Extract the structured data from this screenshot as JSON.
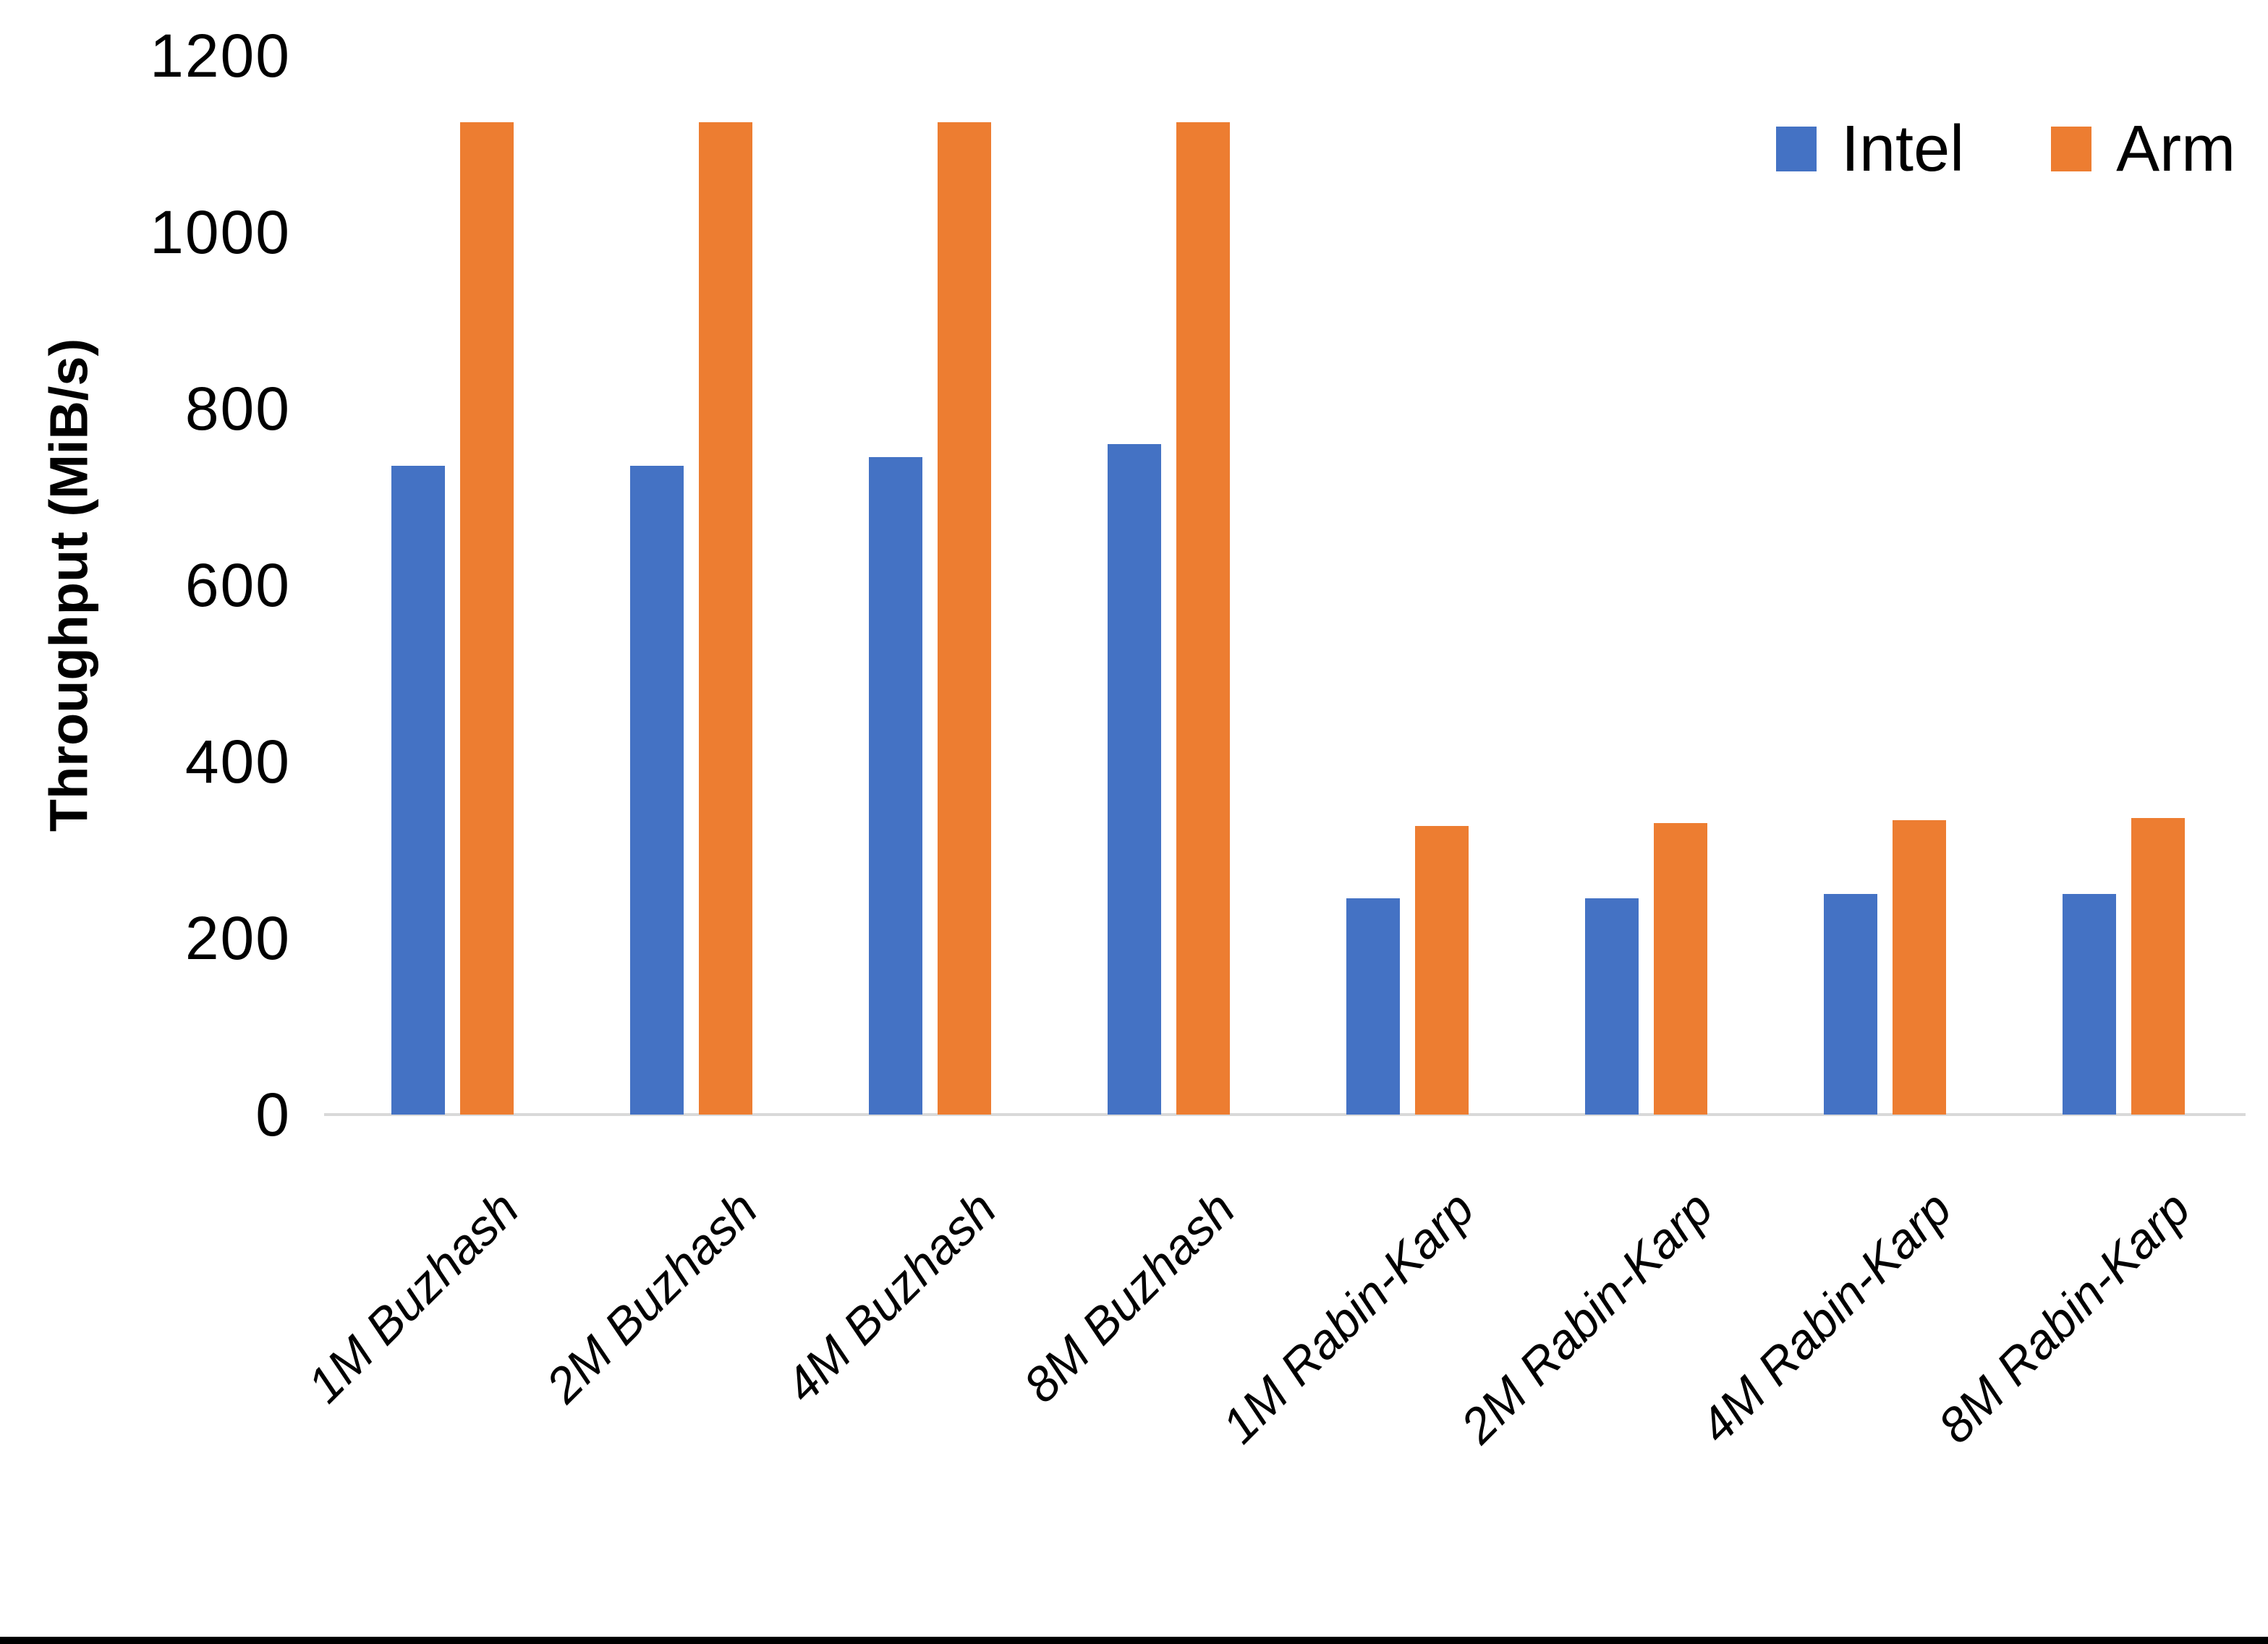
{
  "chart_data": {
    "type": "bar",
    "title": "",
    "ylabel": "Throughput (MiB/s)",
    "xlabel": "",
    "ylim": [
      0,
      1200
    ],
    "yticks": [
      0,
      200,
      400,
      600,
      800,
      1000,
      1200
    ],
    "grid": false,
    "legend_position": "top-right",
    "axis_line_color": "#d9d9d9",
    "categories": [
      "1M Buzhash",
      "2M Buzhash",
      "4M Buzhash",
      "8M Buzhash",
      "1M Rabin-Karp",
      "2M Rabin-Karp",
      "4M Rabin-Karp",
      "8M Rabin-Karp"
    ],
    "series": [
      {
        "name": "Intel",
        "color": "#4472C4",
        "values": [
          735,
          735,
          745,
          760,
          245,
          245,
          250,
          250
        ]
      },
      {
        "name": "Arm",
        "color": "#ED7D31",
        "values": [
          1125,
          1125,
          1125,
          1125,
          327,
          330,
          334,
          336
        ]
      }
    ]
  }
}
